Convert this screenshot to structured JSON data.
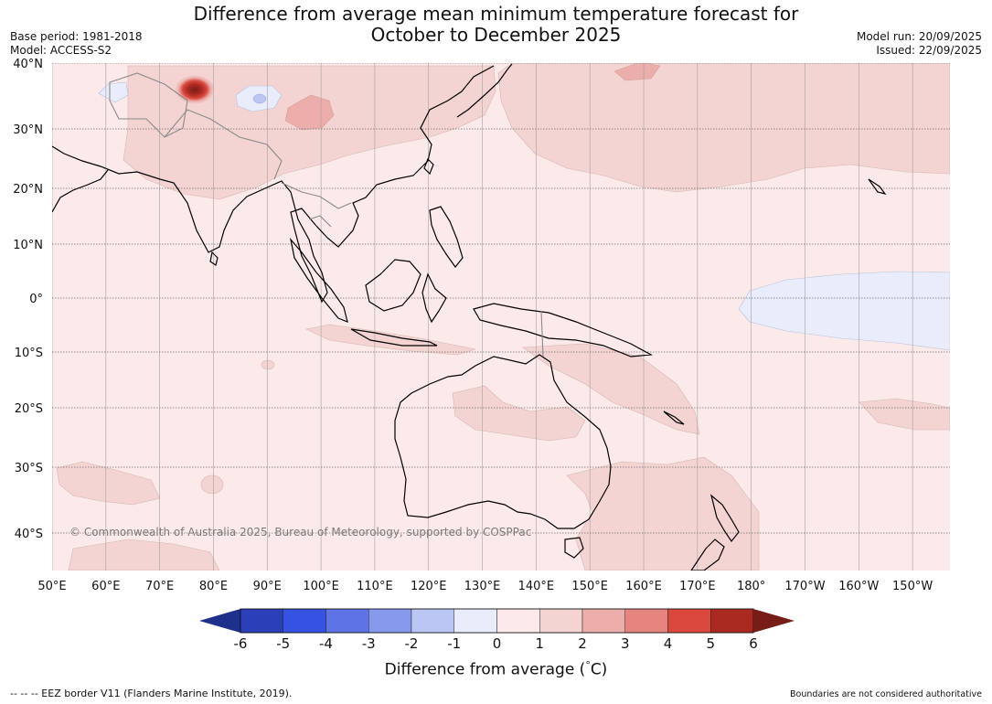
{
  "title_line1": "Difference from average mean minimum temperature forecast for",
  "title_line2": "October to December 2025",
  "base_period": "Base period: 1981-2018",
  "model": "Model: ACCESS-S2",
  "model_run": "Model run: 20/09/2025",
  "issued": "Issued: 22/09/2025",
  "copyright": "© Commonwealth of Australia 2025, Bureau of Meteorology, supported by COSPPac",
  "lat_labels": [
    "40°N",
    "30°N",
    "20°N",
    "10°N",
    "0°",
    "10°S",
    "20°S",
    "30°S",
    "40°S"
  ],
  "lon_labels": [
    "50°E",
    "60°E",
    "70°E",
    "80°E",
    "90°E",
    "100°E",
    "110°E",
    "120°E",
    "130°E",
    "140°E",
    "150°E",
    "160°E",
    "170°E",
    "180°",
    "170°W",
    "160°W",
    "150°W"
  ],
  "colorbar": {
    "ticks": [
      "-6",
      "-5",
      "-4",
      "-3",
      "-2",
      "-1",
      "0",
      "1",
      "2",
      "3",
      "4",
      "5",
      "6"
    ],
    "colors": [
      "#1e2f8c",
      "#2a3fb8",
      "#3652e0",
      "#5d73e6",
      "#8699ec",
      "#bcc6f5",
      "#e8ecfb",
      "#fbeae9",
      "#f3d4d2",
      "#ebaeab",
      "#e68580",
      "#d9473d",
      "#aa2a22",
      "#761d18"
    ],
    "label": "Difference from average (",
    "unit_label": "C)",
    "degree_symbol": "°"
  },
  "eez_note": "--  --  -- EEZ border V11 (Flanders Marine Institute, 2019).",
  "boundary_note": "Boundaries are not considered authoritative"
}
